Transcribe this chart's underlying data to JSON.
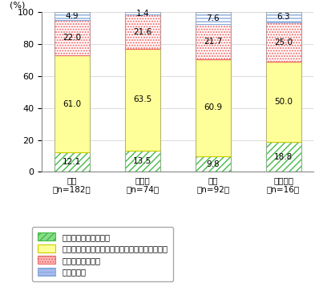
{
  "categories": [
    "全体（n=182）",
    "高導入（n=74）",
    "導入（n=92）",
    "導入なし（n=16）"
  ],
  "categories_line1": [
    "全体",
    "高導入",
    "導入",
    "導入なし"
  ],
  "categories_line2": [
    "（n=182）",
    "（n=74）",
    "（n=92）",
    "（n=16）"
  ],
  "series_keys": [
    "十分に活用できている",
    "活用はできているが、十分ではないと感じている",
    "活用できていない",
    "わからない"
  ],
  "series": {
    "十分に活用できている": [
      12.1,
      13.5,
      9.8,
      18.8
    ],
    "活用はできているが、十分ではないと感じている": [
      61.0,
      63.5,
      60.9,
      50.0
    ],
    "活用できていない": [
      22.0,
      21.6,
      21.7,
      25.0
    ],
    "わからない": [
      4.9,
      1.4,
      7.6,
      6.3
    ]
  },
  "colors": {
    "十分に活用できている": "#ffffff",
    "活用はできているが、十分ではないと感じている": "#ffff99",
    "活用できていない": "#ffffff",
    "わからない": "#ffffff"
  },
  "hatch_colors": {
    "十分に活用できている": "#44bb44",
    "活用はできているが、十分ではないと感じている": "#cccc00",
    "活用できていない": "#ee6666",
    "わからない": "#88aadd"
  },
  "hatch": {
    "十分に活用できている": "////",
    "活用はできているが、十分ではないと感じている": "",
    "活用できていない": ".....",
    "わからない": "----"
  },
  "legend_face_colors": {
    "十分に活用できている": "#88dd88",
    "活用はできているが、十分ではないと感じている": "#ffff99",
    "活用できていない": "#ffbbbb",
    "わからない": "#aabbee"
  },
  "ylabel": "(%)",
  "ylim": [
    0,
    100
  ],
  "yticks": [
    0,
    20,
    40,
    60,
    80,
    100
  ],
  "bar_width": 0.5,
  "figsize": [
    4.03,
    3.83
  ],
  "dpi": 100
}
